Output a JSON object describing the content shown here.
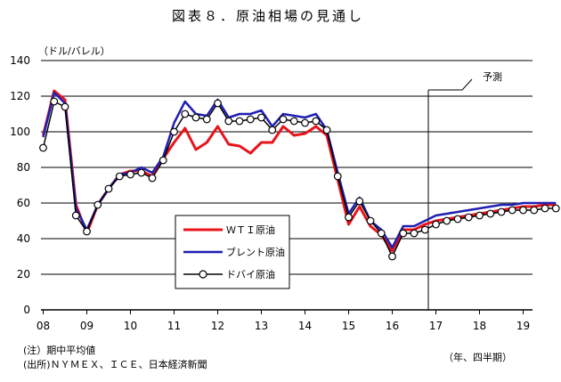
{
  "chart_data": {
    "type": "line",
    "title": "図表８．原油相場の見通し",
    "ylabel": "（ドル/バレル）",
    "xlabel": "（年、四半期）",
    "ylim": [
      0,
      140
    ],
    "yticks": [
      0,
      20,
      40,
      60,
      80,
      100,
      120,
      140
    ],
    "x_tick_labels": [
      "08",
      "09",
      "10",
      "11",
      "12",
      "13",
      "14",
      "15",
      "16",
      "17",
      "18",
      "19"
    ],
    "quarters_per_year": 4,
    "forecast_label": "予測",
    "forecast_start": "2016Q4",
    "legend_position": "center-left",
    "grid": "horizontal",
    "series": [
      {
        "name": "ＷＴＩ原油",
        "color": "#e8141b",
        "marker": "none",
        "values": [
          98,
          123,
          118,
          59,
          43,
          59,
          68,
          76,
          78,
          78,
          75,
          85,
          94,
          102,
          90,
          94,
          103,
          93,
          92,
          88,
          94,
          94,
          103,
          98,
          99,
          103,
          98,
          73,
          48,
          58,
          47,
          42,
          33,
          45,
          45,
          48,
          50,
          51,
          52,
          53,
          54,
          55,
          56,
          57,
          58,
          58,
          59,
          59
        ]
      },
      {
        "name": "ブレント原油",
        "color": "#1f1fb4",
        "marker": "none",
        "values": [
          97,
          122,
          116,
          57,
          45,
          59,
          68,
          76,
          77,
          80,
          77,
          86,
          105,
          117,
          110,
          109,
          118,
          108,
          110,
          110,
          112,
          103,
          110,
          109,
          108,
          110,
          101,
          77,
          54,
          63,
          50,
          45,
          35,
          47,
          47,
          50,
          53,
          54,
          55,
          56,
          57,
          58,
          59,
          59,
          60,
          60,
          60,
          60
        ]
      },
      {
        "name": "ドバイ原油",
        "color": "#000000",
        "marker": "circle",
        "values": [
          91,
          117,
          114,
          53,
          44,
          59,
          68,
          75,
          76,
          77,
          74,
          84,
          100,
          110,
          108,
          107,
          116,
          106,
          106,
          107,
          108,
          101,
          107,
          106,
          105,
          106,
          101,
          75,
          52,
          61,
          50,
          43,
          30,
          43,
          43,
          45,
          48,
          50,
          51,
          52,
          53,
          54,
          55,
          56,
          56,
          56,
          57,
          57
        ]
      }
    ]
  },
  "footnotes": {
    "note": "(注）期中平均値",
    "source": "(出所)ＮＹＭＥＸ、ＩＣＥ、日本経済新聞"
  }
}
